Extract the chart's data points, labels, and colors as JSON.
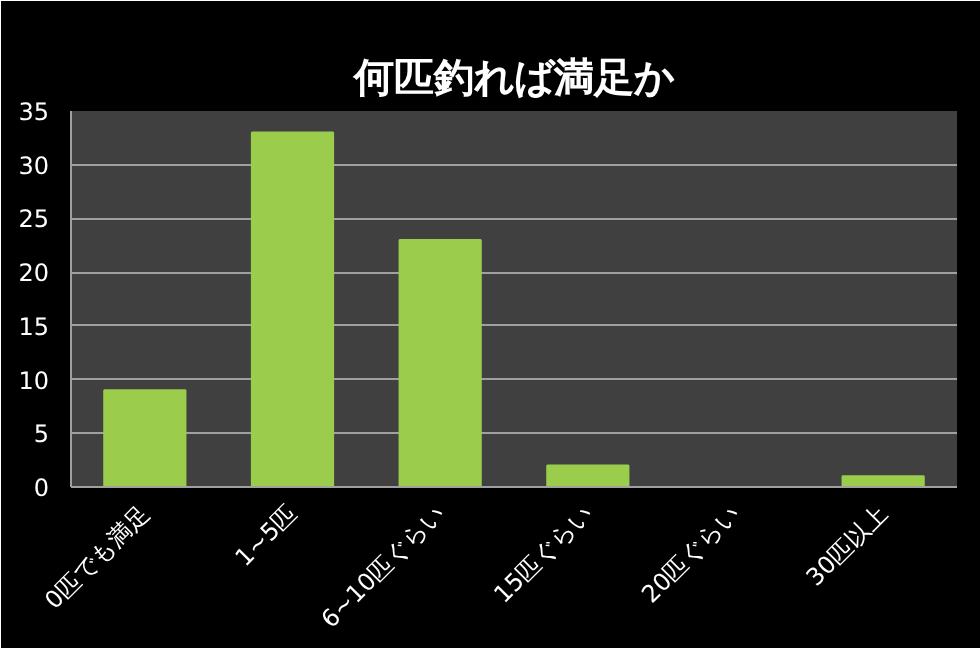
{
  "chart_data": {
    "type": "bar",
    "title": "何匹釣れば満足か",
    "categories": [
      "0匹でも満足",
      "1~5匹",
      "6~10匹ぐらい",
      "15匹ぐらい",
      "20匹ぐらい",
      "30匹以上"
    ],
    "values": [
      9,
      33,
      23,
      2,
      0,
      1
    ],
    "color": "#9ccc4c",
    "ylim": [
      0,
      35
    ],
    "yticks": [
      0,
      5,
      10,
      15,
      20,
      25,
      30,
      35
    ],
    "grid": "y"
  }
}
